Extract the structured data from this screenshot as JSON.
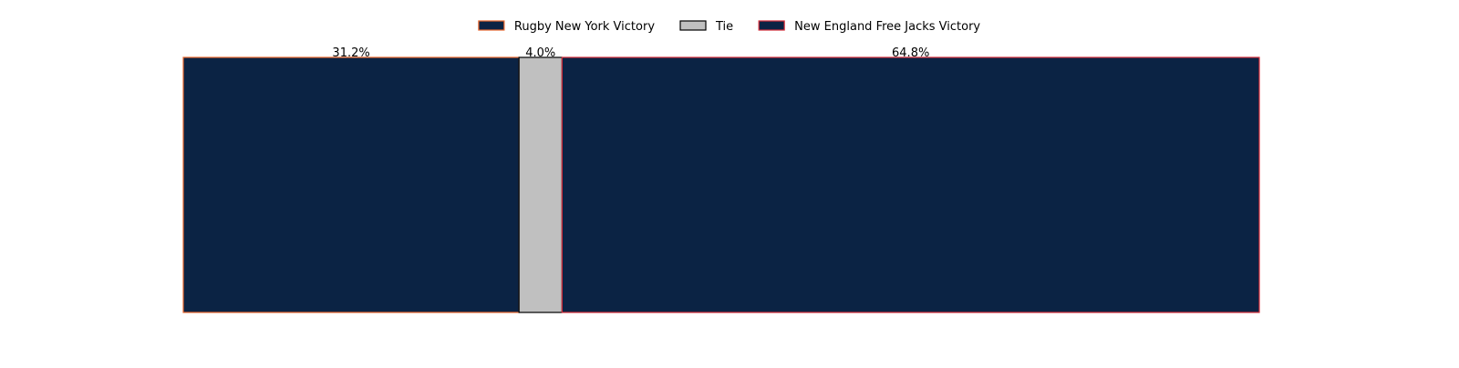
{
  "chart_data": {
    "type": "bar",
    "orientation": "horizontal-stacked",
    "title": "",
    "xlabel": "",
    "ylabel": "",
    "axes_visible": false,
    "grid": false,
    "legend_position": "top-center",
    "xlim": [
      0,
      100
    ],
    "series": [
      {
        "name": "Rugby New York Victory",
        "value": 31.2,
        "label": "31.2%",
        "fill": "#0b2344",
        "edge": "#e8672e"
      },
      {
        "name": "Tie",
        "value": 4.0,
        "label": "4.0%",
        "fill": "#c0c0c0",
        "edge": "#000000"
      },
      {
        "name": "New England Free Jacks Victory",
        "value": 64.8,
        "label": "64.8%",
        "fill": "#0b2344",
        "edge": "#d62d3a"
      }
    ]
  }
}
